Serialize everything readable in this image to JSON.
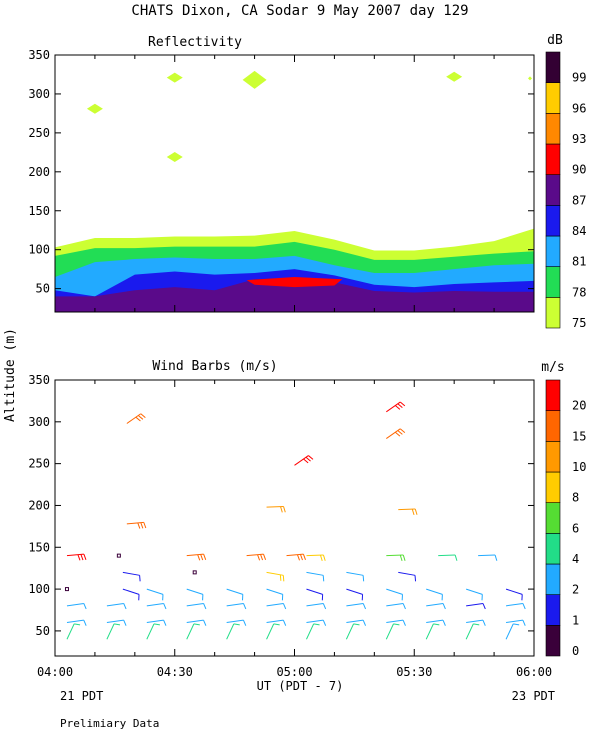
{
  "title": "CHATS Dixon, CA  Sodar   9 May 2007  day 129",
  "y_axis_label": "Altitude (m)",
  "x_axis_label": "UT  (PDT - 7)",
  "x_ticks": [
    "04:00",
    "04:30",
    "05:00",
    "05:30",
    "06:00"
  ],
  "left_date_label": "21 PDT",
  "right_date_label": "23 PDT",
  "footnote": "Prelimiary Data",
  "chart_data": [
    {
      "type": "heatmap",
      "title": "Reflectivity",
      "xlabel": "UT  (PDT - 7)",
      "ylabel": "Altitude (m)",
      "x_unit": "minutes after 04:00 UT",
      "xlim": [
        0,
        120
      ],
      "ylim": [
        20,
        350
      ],
      "y_ticks": [
        50,
        100,
        150,
        200,
        250,
        300,
        350
      ],
      "colorbar": {
        "label": "dB",
        "levels": [
          75,
          78,
          81,
          84,
          87,
          90,
          93,
          96,
          99
        ],
        "colors": [
          "#ccff33",
          "#22dd55",
          "#22aaff",
          "#1a1aee",
          "#5a0a8a",
          "#ff0000",
          "#ff8800",
          "#ffcc00",
          "#330033"
        ]
      },
      "contour_x": [
        0,
        10,
        20,
        30,
        40,
        50,
        60,
        70,
        80,
        90,
        100,
        110,
        120
      ],
      "contours": [
        {
          "level": 75,
          "top": [
            103,
            115,
            115,
            117,
            117,
            118,
            124,
            113,
            99,
            99,
            104,
            111,
            127
          ]
        },
        {
          "level": 78,
          "top": [
            92,
            102,
            102,
            104,
            104,
            104,
            110,
            100,
            87,
            87,
            91,
            95,
            98
          ]
        },
        {
          "level": 81,
          "top": [
            65,
            84,
            88,
            90,
            88,
            88,
            92,
            80,
            70,
            70,
            75,
            80,
            82
          ]
        },
        {
          "level": 84,
          "top": [
            48,
            40,
            68,
            72,
            68,
            70,
            75,
            67,
            55,
            52,
            56,
            58,
            60
          ]
        },
        {
          "level": 87,
          "top": [
            40,
            40,
            48,
            52,
            48,
            62,
            64,
            58,
            47,
            45,
            47,
            46,
            46
          ]
        },
        {
          "level": 90,
          "top": [
            0,
            0,
            0,
            0,
            0,
            0,
            62,
            0,
            0,
            0,
            0,
            0,
            0
          ]
        }
      ],
      "patches_dB75": [
        {
          "time_min": 10,
          "alt": 281
        },
        {
          "time_min": 30,
          "alt": 219
        },
        {
          "time_min": 30,
          "alt": 321
        },
        {
          "time_min": 50,
          "alt": 318
        },
        {
          "time_min": 100,
          "alt": 322
        },
        {
          "time_min": 119,
          "alt": 320
        }
      ],
      "core_dB90": {
        "from_min": 48,
        "to_min": 72,
        "alt_low": 52,
        "alt_high": 65
      }
    },
    {
      "type": "scatter",
      "title": "Wind Barbs (m/s)",
      "xlabel": "UT  (PDT - 7)",
      "ylabel": "Altitude (m)",
      "x_unit": "minutes after 04:00 UT",
      "xlim": [
        0,
        120
      ],
      "ylim": [
        20,
        350
      ],
      "y_ticks": [
        50,
        100,
        150,
        200,
        250,
        300,
        350
      ],
      "colorbar": {
        "label": "m/s",
        "tick_labels": [
          "0",
          "1",
          "2",
          "4",
          "6",
          "8",
          "10",
          "15",
          "20"
        ],
        "colors": [
          "#3a003a",
          "#1a1aee",
          "#22aaff",
          "#22dd88",
          "#55dd33",
          "#ffcc00",
          "#ff9900",
          "#ff6600",
          "#ff0000"
        ]
      },
      "barbs": [
        {
          "t": 3,
          "alt": 40,
          "ws": 4
        },
        {
          "t": 13,
          "alt": 40,
          "ws": 4
        },
        {
          "t": 23,
          "alt": 40,
          "ws": 4
        },
        {
          "t": 33,
          "alt": 40,
          "ws": 4
        },
        {
          "t": 43,
          "alt": 40,
          "ws": 4
        },
        {
          "t": 53,
          "alt": 40,
          "ws": 4
        },
        {
          "t": 63,
          "alt": 40,
          "ws": 4
        },
        {
          "t": 73,
          "alt": 40,
          "ws": 4
        },
        {
          "t": 83,
          "alt": 40,
          "ws": 4
        },
        {
          "t": 93,
          "alt": 40,
          "ws": 4
        },
        {
          "t": 103,
          "alt": 40,
          "ws": 4
        },
        {
          "t": 113,
          "alt": 40,
          "ws": 2
        },
        {
          "t": 3,
          "alt": 60,
          "ws": 2
        },
        {
          "t": 13,
          "alt": 60,
          "ws": 2
        },
        {
          "t": 23,
          "alt": 60,
          "ws": 2
        },
        {
          "t": 33,
          "alt": 60,
          "ws": 2
        },
        {
          "t": 43,
          "alt": 60,
          "ws": 2
        },
        {
          "t": 53,
          "alt": 60,
          "ws": 2
        },
        {
          "t": 63,
          "alt": 60,
          "ws": 2
        },
        {
          "t": 73,
          "alt": 60,
          "ws": 2
        },
        {
          "t": 83,
          "alt": 60,
          "ws": 2
        },
        {
          "t": 93,
          "alt": 60,
          "ws": 2
        },
        {
          "t": 103,
          "alt": 60,
          "ws": 2
        },
        {
          "t": 113,
          "alt": 60,
          "ws": 2
        },
        {
          "t": 3,
          "alt": 80,
          "ws": 2
        },
        {
          "t": 13,
          "alt": 80,
          "ws": 2
        },
        {
          "t": 23,
          "alt": 80,
          "ws": 2
        },
        {
          "t": 33,
          "alt": 80,
          "ws": 2
        },
        {
          "t": 43,
          "alt": 80,
          "ws": 2
        },
        {
          "t": 53,
          "alt": 80,
          "ws": 2
        },
        {
          "t": 63,
          "alt": 80,
          "ws": 2
        },
        {
          "t": 73,
          "alt": 80,
          "ws": 2
        },
        {
          "t": 83,
          "alt": 80,
          "ws": 2
        },
        {
          "t": 93,
          "alt": 80,
          "ws": 2
        },
        {
          "t": 103,
          "alt": 80,
          "ws": 1
        },
        {
          "t": 113,
          "alt": 80,
          "ws": 2
        },
        {
          "t": 3,
          "alt": 100,
          "ws": 0
        },
        {
          "t": 17,
          "alt": 100,
          "ws": 1
        },
        {
          "t": 23,
          "alt": 100,
          "ws": 2
        },
        {
          "t": 33,
          "alt": 100,
          "ws": 2
        },
        {
          "t": 43,
          "alt": 100,
          "ws": 2
        },
        {
          "t": 53,
          "alt": 100,
          "ws": 2
        },
        {
          "t": 63,
          "alt": 100,
          "ws": 1
        },
        {
          "t": 73,
          "alt": 100,
          "ws": 1
        },
        {
          "t": 83,
          "alt": 100,
          "ws": 2
        },
        {
          "t": 93,
          "alt": 100,
          "ws": 2
        },
        {
          "t": 103,
          "alt": 100,
          "ws": 2
        },
        {
          "t": 113,
          "alt": 100,
          "ws": 1
        },
        {
          "t": 17,
          "alt": 120,
          "ws": 1
        },
        {
          "t": 35,
          "alt": 120,
          "ws": 0
        },
        {
          "t": 53,
          "alt": 120,
          "ws": 8
        },
        {
          "t": 63,
          "alt": 120,
          "ws": 2
        },
        {
          "t": 73,
          "alt": 120,
          "ws": 2
        },
        {
          "t": 86,
          "alt": 120,
          "ws": 1
        },
        {
          "t": 3,
          "alt": 140,
          "ws": 20
        },
        {
          "t": 16,
          "alt": 140,
          "ws": 0
        },
        {
          "t": 33,
          "alt": 140,
          "ws": 15
        },
        {
          "t": 48,
          "alt": 140,
          "ws": 15
        },
        {
          "t": 58,
          "alt": 140,
          "ws": 15
        },
        {
          "t": 63,
          "alt": 140,
          "ws": 8
        },
        {
          "t": 83,
          "alt": 140,
          "ws": 6
        },
        {
          "t": 96,
          "alt": 140,
          "ws": 4
        },
        {
          "t": 106,
          "alt": 140,
          "ws": 2
        },
        {
          "t": 18,
          "alt": 178,
          "ws": 15
        },
        {
          "t": 53,
          "alt": 198,
          "ws": 10
        },
        {
          "t": 86,
          "alt": 195,
          "ws": 10
        },
        {
          "t": 60,
          "alt": 248,
          "ws": 20
        },
        {
          "t": 18,
          "alt": 298,
          "ws": 15
        },
        {
          "t": 83,
          "alt": 280,
          "ws": 15
        },
        {
          "t": 83,
          "alt": 312,
          "ws": 20
        }
      ]
    }
  ]
}
